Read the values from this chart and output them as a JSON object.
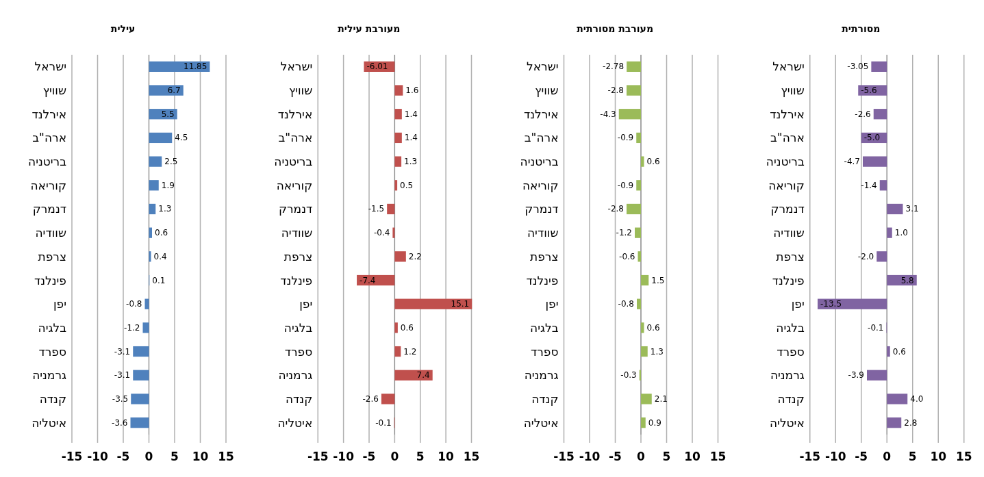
{
  "chart_data": [
    {
      "type": "bar",
      "orientation": "horizontal",
      "title": "עילית",
      "categories": [
        "ישראל",
        "שוויץ",
        "אירלנד",
        "ארה\"ב",
        "בריטניה",
        "קוריאה",
        "דנמרק",
        "שוודיה",
        "צרפת",
        "פינלנד",
        "יפן",
        "בלגיה",
        "ספרד",
        "גרמניה",
        "קנדה",
        "איטליה"
      ],
      "color": "#4f81bd",
      "values": [
        11.85,
        6.7,
        5.5,
        4.5,
        2.5,
        1.9,
        1.3,
        0.6,
        0.4,
        0.1,
        -0.8,
        -1.2,
        -3.1,
        -3.1,
        -3.5,
        -3.6
      ],
      "value_labels": [
        "11.85",
        "6.7",
        "5.5",
        "4.5",
        "2.5",
        "1.9",
        "1.3",
        "0.6",
        "0.4",
        "0.1",
        "-0.8",
        "-1.2",
        "-3.1",
        "-3.1",
        "-3.5",
        "-3.6"
      ],
      "xlim": [
        -15,
        15
      ],
      "xticks": [
        -15,
        -10,
        -5,
        0,
        5,
        10,
        15
      ],
      "grid": "x"
    },
    {
      "type": "bar",
      "orientation": "horizontal",
      "title": "מעורבת עילית",
      "categories": [
        "ישראל",
        "שוויץ",
        "אירלנד",
        "ארה\"ב",
        "בריטניה",
        "קוריאה",
        "דנמרק",
        "שוודיה",
        "צרפת",
        "פינלנד",
        "יפן",
        "בלגיה",
        "ספרד",
        "גרמניה",
        "קנדה",
        "איטליה"
      ],
      "color": "#c0504d",
      "values": [
        -6.01,
        1.6,
        1.4,
        1.4,
        1.3,
        0.5,
        -1.5,
        -0.4,
        2.2,
        -7.4,
        15.1,
        0.6,
        1.2,
        7.4,
        -2.6,
        -0.1
      ],
      "value_labels": [
        "-6.01",
        "1.6",
        "1.4",
        "1.4",
        "1.3",
        "0.5",
        "-1.5",
        "-0.4",
        "2.2",
        "-7.4",
        "15.1",
        "0.6",
        "1.2",
        "7.4",
        "-2.6",
        "-0.1"
      ],
      "xlim": [
        -15,
        15.1
      ],
      "xticks": [
        -15,
        -10,
        -5,
        0,
        5,
        10,
        15
      ],
      "grid": "x"
    },
    {
      "type": "bar",
      "orientation": "horizontal",
      "title": "מעורבת מסורתית",
      "categories": [
        "ישראל",
        "שוויץ",
        "אירלנד",
        "ארה\"ב",
        "בריטניה",
        "קוריאה",
        "דנמרק",
        "שוודיה",
        "צרפת",
        "פינלנד",
        "יפן",
        "בלגיה",
        "ספרד",
        "גרמניה",
        "קנדה",
        "איטליה"
      ],
      "color": "#9bbb59",
      "values": [
        -2.78,
        -2.8,
        -4.3,
        -0.9,
        0.6,
        -0.9,
        -2.8,
        -1.2,
        -0.6,
        1.5,
        -0.8,
        0.6,
        1.3,
        -0.3,
        2.1,
        0.9
      ],
      "value_labels": [
        "-2.78",
        "-2.8",
        "-4.3",
        "-0.9",
        "0.6",
        "-0.9",
        "-2.8",
        "-1.2",
        "-0.6",
        "1.5",
        "-0.8",
        "0.6",
        "1.3",
        "-0.3",
        "2.1",
        "0.9"
      ],
      "xlim": [
        -15,
        15
      ],
      "xticks": [
        -15,
        -10,
        -5,
        0,
        5,
        10,
        15
      ],
      "grid": "x"
    },
    {
      "type": "bar",
      "orientation": "horizontal",
      "title": "מסורתית",
      "categories": [
        "ישראל",
        "שוויץ",
        "אירלנד",
        "ארה\"ב",
        "בריטניה",
        "קוריאה",
        "דנמרק",
        "שוודיה",
        "צרפת",
        "פינלנד",
        "יפן",
        "בלגיה",
        "ספרד",
        "גרמניה",
        "קנדה",
        "איטליה"
      ],
      "color": "#8064a2",
      "values": [
        -3.05,
        -5.6,
        -2.6,
        -5.0,
        -4.7,
        -1.4,
        3.1,
        1.0,
        -2.0,
        5.8,
        -13.5,
        -0.1,
        0.6,
        -3.9,
        4.0,
        2.8
      ],
      "value_labels": [
        "-3.05",
        "-5.6",
        "-2.6",
        "-5.0",
        "-4.7",
        "-1.4",
        "3.1",
        "1.0",
        "-2.0",
        "5.8",
        "-13.5",
        "-0.1",
        "0.6",
        "-3.9",
        "4.0",
        "2.8"
      ],
      "xlim": [
        -15,
        15
      ],
      "xticks": [
        -15,
        -10,
        -5,
        0,
        5,
        10,
        15
      ],
      "grid": "x"
    }
  ]
}
